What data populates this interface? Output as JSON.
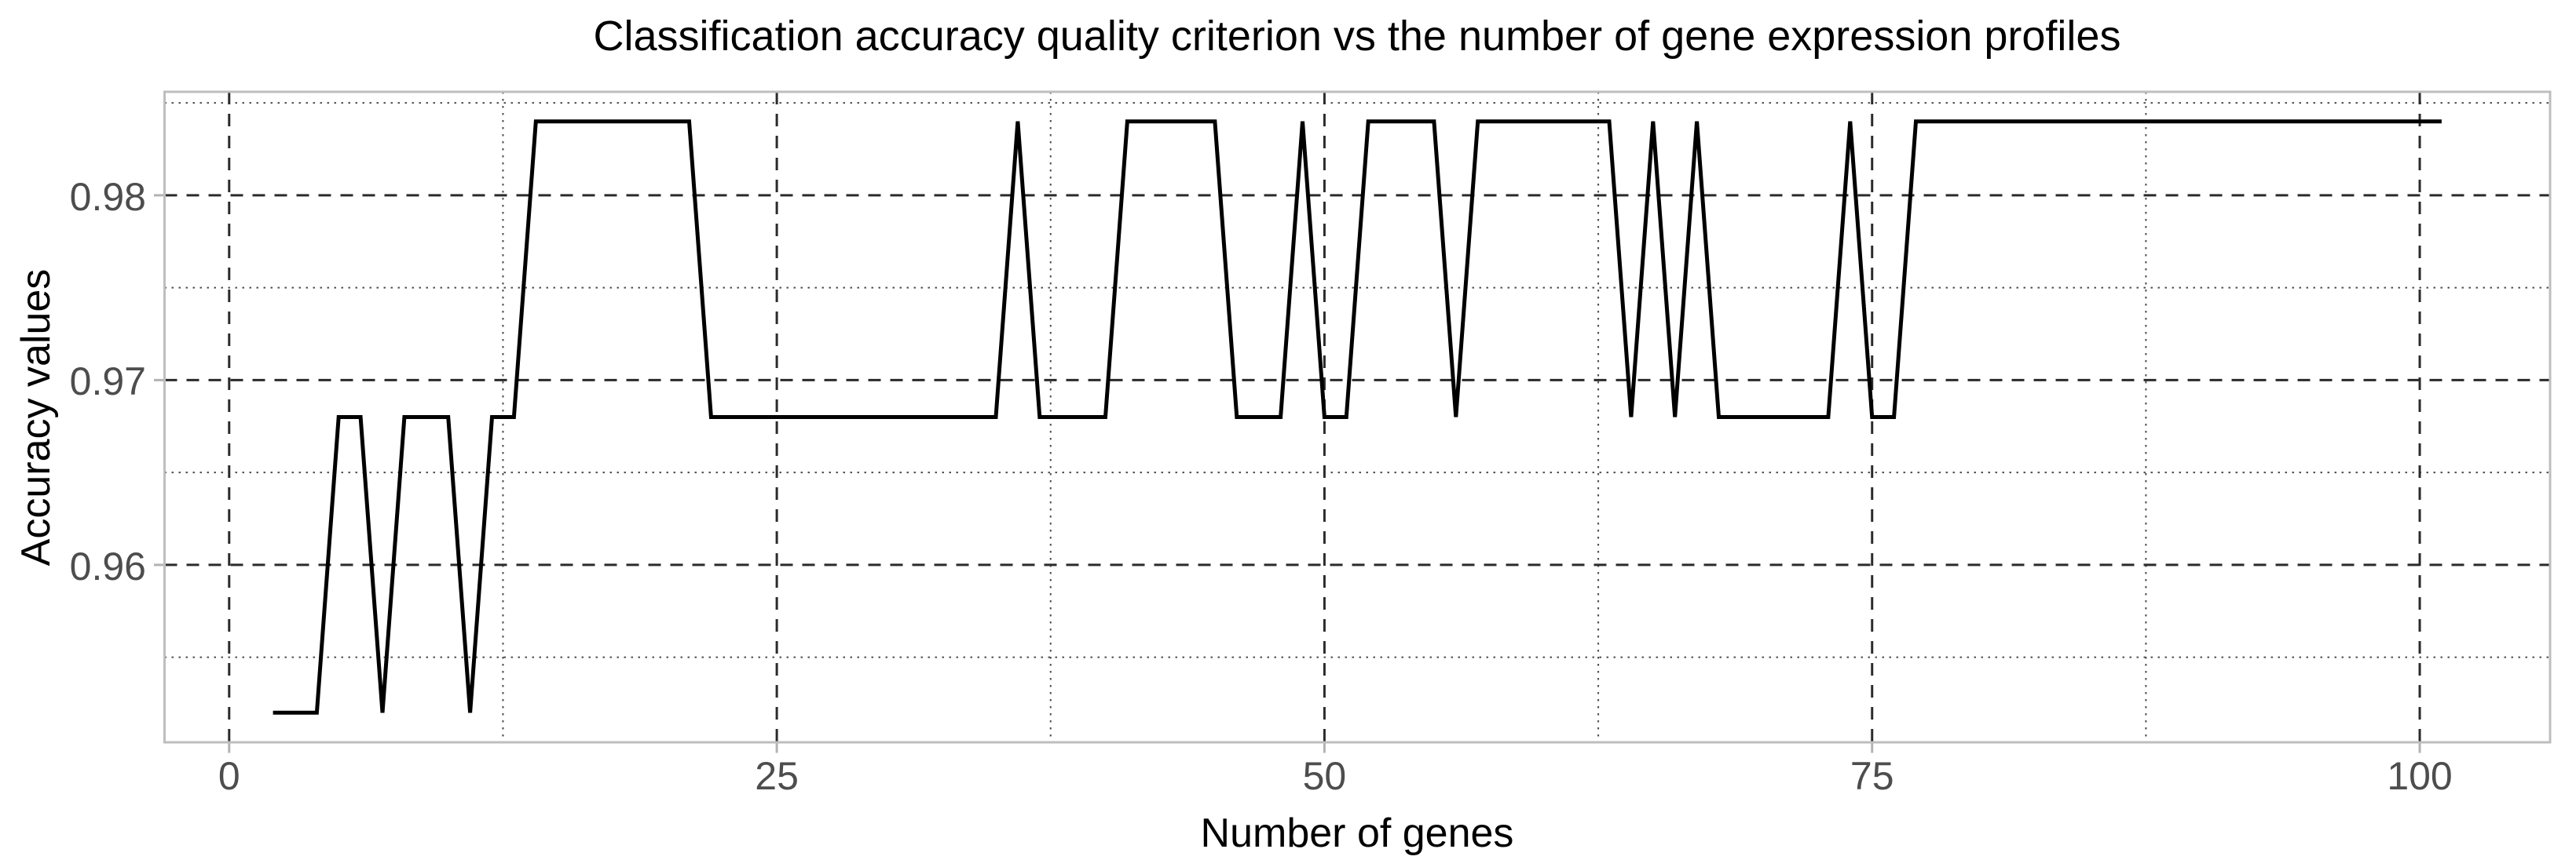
{
  "chart_data": {
    "type": "line",
    "title": "Classification accuracy quality criterion vs the number of gene expression profiles",
    "xlabel": "Number of genes",
    "ylabel": "Accuracy values",
    "legend": "none",
    "grid": "major dashed and minor dotted, dark on white panel",
    "xlim": [
      -2.95,
      105.95
    ],
    "ylim": [
      0.9504,
      0.9856
    ],
    "x_major_ticks": [
      0,
      25,
      50,
      75,
      100
    ],
    "x_tick_labels": [
      "0",
      "25",
      "50",
      "75",
      "100"
    ],
    "x_minor_gridlines": [
      12.5,
      37.5,
      62.5,
      87.5
    ],
    "y_major_ticks": [
      0.96,
      0.97,
      0.98
    ],
    "y_tick_labels": [
      "0.96",
      "0.97",
      "0.98"
    ],
    "y_minor_gridlines": [
      0.955,
      0.965,
      0.975,
      0.985
    ],
    "x": [
      2,
      3,
      4,
      5,
      6,
      7,
      8,
      9,
      10,
      11,
      12,
      13,
      14,
      15,
      16,
      17,
      18,
      19,
      20,
      21,
      22,
      23,
      24,
      25,
      26,
      27,
      28,
      29,
      30,
      31,
      32,
      33,
      34,
      35,
      36,
      37,
      38,
      39,
      40,
      41,
      42,
      43,
      44,
      45,
      46,
      47,
      48,
      49,
      50,
      51,
      52,
      53,
      54,
      55,
      56,
      57,
      58,
      59,
      60,
      61,
      62,
      63,
      64,
      65,
      66,
      67,
      68,
      69,
      70,
      71,
      72,
      73,
      74,
      75,
      76,
      77,
      78,
      79,
      80,
      81,
      82,
      83,
      84,
      85,
      86,
      87,
      88,
      89,
      90,
      91,
      92,
      93,
      94,
      95,
      96,
      97,
      98,
      99,
      100,
      101
    ],
    "values": [
      0.952,
      0.952,
      0.952,
      0.968,
      0.968,
      0.952,
      0.968,
      0.968,
      0.968,
      0.952,
      0.968,
      0.968,
      0.984,
      0.984,
      0.984,
      0.984,
      0.984,
      0.984,
      0.984,
      0.984,
      0.968,
      0.968,
      0.968,
      0.968,
      0.968,
      0.968,
      0.968,
      0.968,
      0.968,
      0.968,
      0.968,
      0.968,
      0.968,
      0.968,
      0.984,
      0.968,
      0.968,
      0.968,
      0.968,
      0.984,
      0.984,
      0.984,
      0.984,
      0.984,
      0.968,
      0.968,
      0.968,
      0.984,
      0.968,
      0.968,
      0.984,
      0.984,
      0.984,
      0.984,
      0.968,
      0.984,
      0.984,
      0.984,
      0.984,
      0.984,
      0.984,
      0.984,
      0.968,
      0.984,
      0.968,
      0.984,
      0.968,
      0.968,
      0.968,
      0.968,
      0.968,
      0.968,
      0.984,
      0.968,
      0.968,
      0.984,
      0.984,
      0.984,
      0.984,
      0.984,
      0.984,
      0.984,
      0.984,
      0.984,
      0.984,
      0.984,
      0.984,
      0.984,
      0.984,
      0.984,
      0.984,
      0.984,
      0.984,
      0.984,
      0.984,
      0.984,
      0.984,
      0.984,
      0.984,
      0.984
    ],
    "colors": {
      "line": "#000000",
      "grid_major": "#2b2b2b",
      "grid_minor": "#4d4d4d",
      "panel_border": "#bebebe",
      "tick_mark": "#b3b3b3",
      "tick_label": "#4d4d4d",
      "title": "#000000"
    }
  }
}
